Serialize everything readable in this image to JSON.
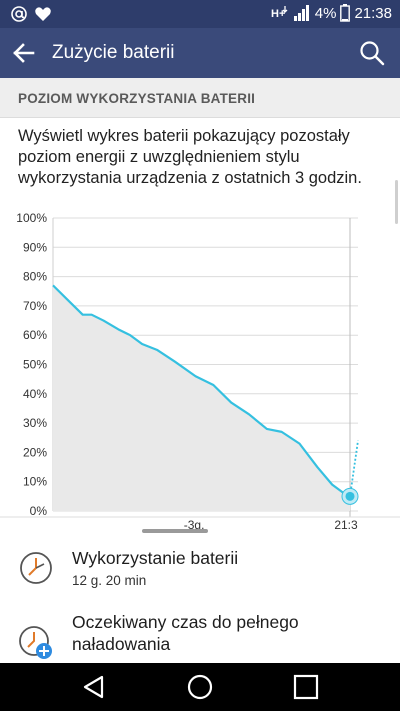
{
  "status_bar": {
    "left_icons": [
      "at-icon",
      "heart-icon"
    ],
    "right_icons": [
      "h-plus-icon",
      "signal-icon"
    ],
    "battery_percent": "4%",
    "time": "21:38"
  },
  "app_bar": {
    "title": "Zużycie baterii",
    "back_icon": "arrow-left-icon",
    "search_icon": "search-icon"
  },
  "section": {
    "title": "POZIOM WYKORZYSTANIA BATERII"
  },
  "description": {
    "line1": "Wyświetl wykres baterii pokazujący pozostały",
    "line2": "poziom energii z uwzględnieniem stylu",
    "line3": "wykorzystania urządzenia z ostatnich 3 godzin."
  },
  "chart_data": {
    "type": "area",
    "title": "",
    "xlabel": "",
    "ylabel": "",
    "ylim": [
      0,
      100
    ],
    "yticks": [
      "100%",
      "90%",
      "80%",
      "70%",
      "60%",
      "50%",
      "40%",
      "30%",
      "20%",
      "10%",
      "0%"
    ],
    "xticks": [
      "-3g.",
      "21:3"
    ],
    "series": [
      {
        "name": "",
        "color": "#35c0e0",
        "x_fraction": [
          0.0,
          0.05,
          0.1,
          0.13,
          0.17,
          0.22,
          0.26,
          0.3,
          0.35,
          0.41,
          0.48,
          0.54,
          0.6,
          0.66,
          0.72,
          0.77,
          0.83,
          0.89,
          0.94,
          0.98,
          1.0
        ],
        "values": [
          77,
          72,
          67,
          67,
          65,
          62,
          60,
          57,
          55,
          51,
          46,
          43,
          37,
          33,
          28,
          27,
          23,
          15,
          9,
          6,
          5
        ]
      }
    ],
    "projection_values": [
      5,
      24
    ],
    "current_point": 5,
    "grid": true,
    "fill_color": "#e9e9e9"
  },
  "items": [
    {
      "title": "Wykorzystanie baterii",
      "subtitle": "12 g. 20 min",
      "icon": "clock-icon"
    },
    {
      "title_line1": "Oczekiwany czas do pełnego",
      "title_line2": "naładowania",
      "subtitle": "",
      "icon": "clock-plus-icon"
    }
  ],
  "nav": {
    "back": "back-icon",
    "home": "home-icon",
    "recents": "recents-icon"
  }
}
